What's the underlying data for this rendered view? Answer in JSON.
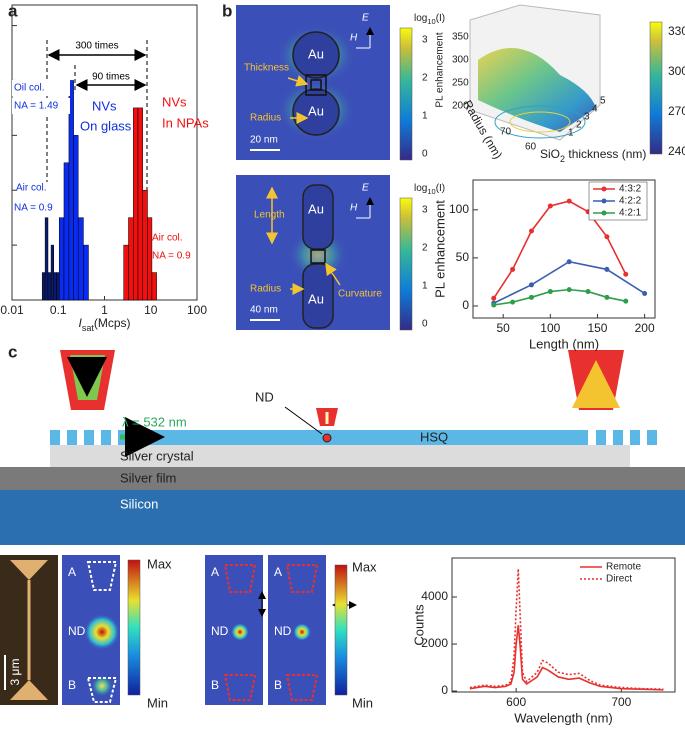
{
  "panel_labels": [
    "a",
    "b",
    "c"
  ],
  "chart_data": [
    {
      "type": "histogram",
      "xlabel": "I",
      "xlabel_subscript": "sat",
      "xlabel_unit": "(Mcps)",
      "log_x": true,
      "xlim": [
        0.01,
        100
      ],
      "xticks": [
        0.01,
        0.1,
        1,
        10,
        100
      ],
      "ylim": [
        0,
        10.75
      ],
      "yticks": [
        0,
        2,
        4,
        6,
        8,
        10
      ],
      "ytick_labels": false,
      "series": [
        {
          "color": "#0b1a6b",
          "bins": [
            0.045,
            0.052,
            0.06,
            0.07,
            0.08,
            0.092,
            0.105
          ],
          "counts": [
            1,
            3,
            1,
            2,
            1,
            1
          ]
        },
        {
          "color": "#0a2cf0",
          "bins": [
            0.105,
            0.133,
            0.17,
            0.215,
            0.27,
            0.35,
            0.45
          ],
          "counts": [
            3,
            5,
            8,
            6,
            3,
            2
          ]
        },
        {
          "color": "#f01010",
          "bins": [
            2.6,
            3.3,
            4.2,
            5.3,
            6.7,
            8.5,
            10.6,
            13.4
          ],
          "counts": [
            2,
            3,
            7,
            7,
            4,
            3,
            1
          ]
        }
      ],
      "annotations": [
        {
          "text": "300 times",
          "color": "#000000"
        },
        {
          "text": "90 times",
          "color": "#000000"
        },
        {
          "text": "Oil col.",
          "color": "#1030e0"
        },
        {
          "text": "NA = 1.49",
          "color": "#1030e0"
        },
        {
          "text": "NVs",
          "color": "#1030e0"
        },
        {
          "text": "On glass",
          "color": "#1030e0"
        },
        {
          "text": "Air col.",
          "color": "#1030e0"
        },
        {
          "text": "NA = 0.9",
          "color": "#1030e0"
        },
        {
          "text": "NVs",
          "color": "#f01010"
        },
        {
          "text": "In NPAs",
          "color": "#f01010"
        },
        {
          "text": "Air col.",
          "color": "#f01010"
        },
        {
          "text": "NA = 0.9",
          "color": "#f01010"
        }
      ]
    },
    {
      "type": "line",
      "xlabel": "Length (nm)",
      "ylabel": "PL enhancement",
      "xlim": [
        18,
        211
      ],
      "xticks": [
        50,
        100,
        150,
        200
      ],
      "ylim": [
        -12.5,
        131
      ],
      "yticks": [
        0,
        50,
        100
      ],
      "legend": "upper right",
      "markers": true,
      "series": [
        {
          "name": "4:3:2",
          "color": "#e8312f",
          "x": [
            40,
            60,
            80,
            100,
            120,
            140,
            160,
            180
          ],
          "values": [
            8,
            38,
            78,
            104,
            109,
            98,
            72,
            33
          ]
        },
        {
          "name": "4:2:2",
          "color": "#3b5fb0",
          "x": [
            40,
            80,
            120,
            160,
            200
          ],
          "values": [
            3,
            22,
            46,
            38,
            13
          ]
        },
        {
          "name": "4:2:1",
          "color": "#2e9e4a",
          "x": [
            40,
            60,
            80,
            100,
            120,
            140,
            160,
            180
          ],
          "values": [
            1,
            4,
            9,
            15,
            17,
            15,
            9,
            5
          ]
        }
      ]
    },
    {
      "type": "line",
      "xlabel": "Wavelength (nm)",
      "ylabel": "Counts",
      "xlim": [
        539,
        751
      ],
      "xticks": [
        600,
        700
      ],
      "ylim": [
        -40,
        5660
      ],
      "yticks": [
        0,
        2000,
        4000
      ],
      "legend": "upper right",
      "markers": false,
      "series": [
        {
          "name": "Remote",
          "color": "#e8312f",
          "dash": "solid",
          "x": [
            556,
            570,
            580,
            590,
            595,
            598,
            600,
            602,
            604,
            606,
            610,
            620,
            625,
            630,
            640,
            650,
            660,
            670,
            680,
            700,
            720,
            740
          ],
          "values": [
            100,
            200,
            150,
            200,
            300,
            800,
            2000,
            2800,
            1800,
            500,
            300,
            600,
            1000,
            900,
            600,
            500,
            550,
            350,
            200,
            100,
            80,
            50
          ]
        },
        {
          "name": "Direct",
          "color": "#e8312f",
          "dash": "dotted",
          "x": [
            556,
            570,
            580,
            590,
            595,
            598,
            600,
            602,
            604,
            606,
            610,
            620,
            625,
            630,
            640,
            650,
            660,
            670,
            680,
            700,
            720,
            740
          ],
          "values": [
            150,
            250,
            200,
            250,
            400,
            1500,
            3500,
            5200,
            3000,
            800,
            400,
            800,
            1300,
            1200,
            800,
            700,
            750,
            450,
            250,
            150,
            100,
            80
          ]
        }
      ]
    }
  ],
  "field_maps": {
    "colorbar_title": {
      "main": "log",
      "subscript": "10",
      "rest": "(I)"
    },
    "colorbar_ticks": [
      "3",
      "2",
      "1",
      "0"
    ],
    "top": {
      "particles": [
        "Au",
        "Au"
      ],
      "thickness": "Thickness",
      "radius": "Radius",
      "scale": "20 nm",
      "axes": [
        "E",
        "H"
      ]
    },
    "bottom": {
      "particles": [
        "Au",
        "Au"
      ],
      "length": "Length",
      "radius": "Radius",
      "curvature": "Curvature",
      "scale": "40 nm",
      "axes": [
        "E",
        "H"
      ]
    }
  },
  "surface_plot": {
    "zlabel": "PL enhancement",
    "xlabel": "Radius (nm)",
    "ylabel": {
      "main": "SiO",
      "subscript": "2",
      "rest": " thickness (nm)"
    },
    "zticks": [
      "350",
      "300",
      "250",
      "200"
    ],
    "xticks": [
      "70",
      "60"
    ],
    "yticks": [
      "1",
      "2",
      "3",
      "4",
      "5"
    ],
    "colorbar_ticks": [
      "330",
      "300",
      "270",
      "240"
    ]
  },
  "diagram": {
    "nd": "ND",
    "wavelength": "λ = 532 nm",
    "hsq": "HSQ",
    "layers": [
      "Silver crystal",
      "Silver film",
      "Silicon"
    ]
  },
  "images": {
    "scale": "3 μm",
    "max": "Max",
    "min": "Min",
    "map_labels": [
      "A",
      "ND",
      "B"
    ]
  }
}
